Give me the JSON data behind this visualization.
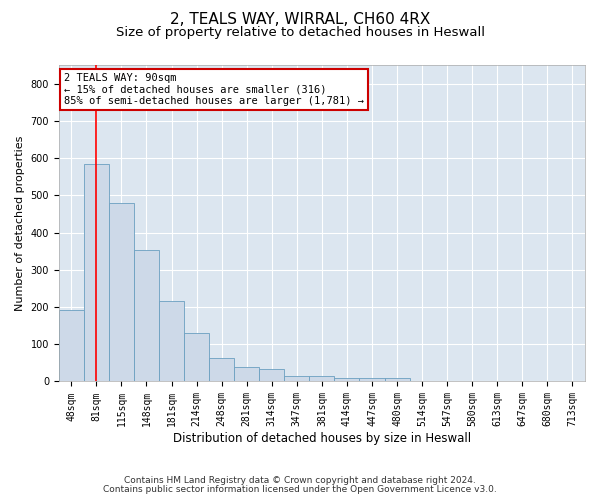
{
  "title": "2, TEALS WAY, WIRRAL, CH60 4RX",
  "subtitle": "Size of property relative to detached houses in Heswall",
  "xlabel": "Distribution of detached houses by size in Heswall",
  "ylabel": "Number of detached properties",
  "categories": [
    "48sqm",
    "81sqm",
    "115sqm",
    "148sqm",
    "181sqm",
    "214sqm",
    "248sqm",
    "281sqm",
    "314sqm",
    "347sqm",
    "381sqm",
    "414sqm",
    "447sqm",
    "480sqm",
    "514sqm",
    "547sqm",
    "580sqm",
    "613sqm",
    "647sqm",
    "680sqm",
    "713sqm"
  ],
  "values": [
    193,
    585,
    480,
    353,
    215,
    130,
    62,
    40,
    33,
    15,
    15,
    10,
    10,
    10,
    0,
    0,
    0,
    0,
    0,
    0,
    0
  ],
  "bar_color": "#cdd9e8",
  "bar_edge_color": "#6a9fc0",
  "background_color": "#dce6f0",
  "grid_color": "#ffffff",
  "red_line_index": 1,
  "ylim": [
    0,
    850
  ],
  "yticks": [
    0,
    100,
    200,
    300,
    400,
    500,
    600,
    700,
    800
  ],
  "annotation_line1": "2 TEALS WAY: 90sqm",
  "annotation_line2": "← 15% of detached houses are smaller (316)",
  "annotation_line3": "85% of semi-detached houses are larger (1,781) →",
  "annotation_box_color": "#cc0000",
  "footer1": "Contains HM Land Registry data © Crown copyright and database right 2024.",
  "footer2": "Contains public sector information licensed under the Open Government Licence v3.0.",
  "title_fontsize": 11,
  "subtitle_fontsize": 9.5,
  "xlabel_fontsize": 8.5,
  "ylabel_fontsize": 8,
  "tick_fontsize": 7,
  "annotation_fontsize": 7.5,
  "footer_fontsize": 6.5
}
